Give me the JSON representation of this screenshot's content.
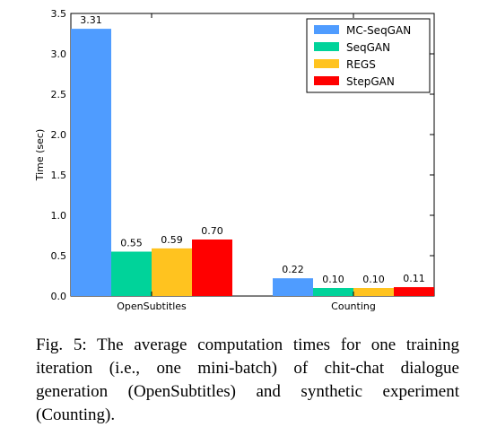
{
  "chart_data": {
    "type": "bar",
    "categories": [
      "OpenSubtitles",
      "Counting"
    ],
    "series": [
      {
        "name": "MC-SeqGAN",
        "color": "#4f9cff",
        "values": [
          3.31,
          0.22
        ],
        "labels": [
          "3.31",
          "0.22"
        ]
      },
      {
        "name": "SeqGAN",
        "color": "#00d39a",
        "values": [
          0.55,
          0.1
        ],
        "labels": [
          "0.55",
          "0.10"
        ]
      },
      {
        "name": "REGS",
        "color": "#ffc31f",
        "values": [
          0.59,
          0.1
        ],
        "labels": [
          "0.59",
          "0.10"
        ]
      },
      {
        "name": "StepGAN",
        "color": "#ff0000",
        "values": [
          0.7,
          0.11
        ],
        "labels": [
          "0.70",
          "0.11"
        ]
      }
    ],
    "ylabel": "Time (sec)",
    "xlabel": "",
    "ylim": [
      0.0,
      3.5
    ],
    "yticks": [
      "0.0",
      "0.5",
      "1.0",
      "1.5",
      "2.0",
      "2.5",
      "3.0",
      "3.5"
    ],
    "legend_position": "top-right",
    "grid": false
  },
  "caption": "Fig. 5: The average computation times for one training iteration (i.e., one mini-batch) of chit-chat dialogue generation (OpenSubtitles) and synthetic experiment (Counting)."
}
